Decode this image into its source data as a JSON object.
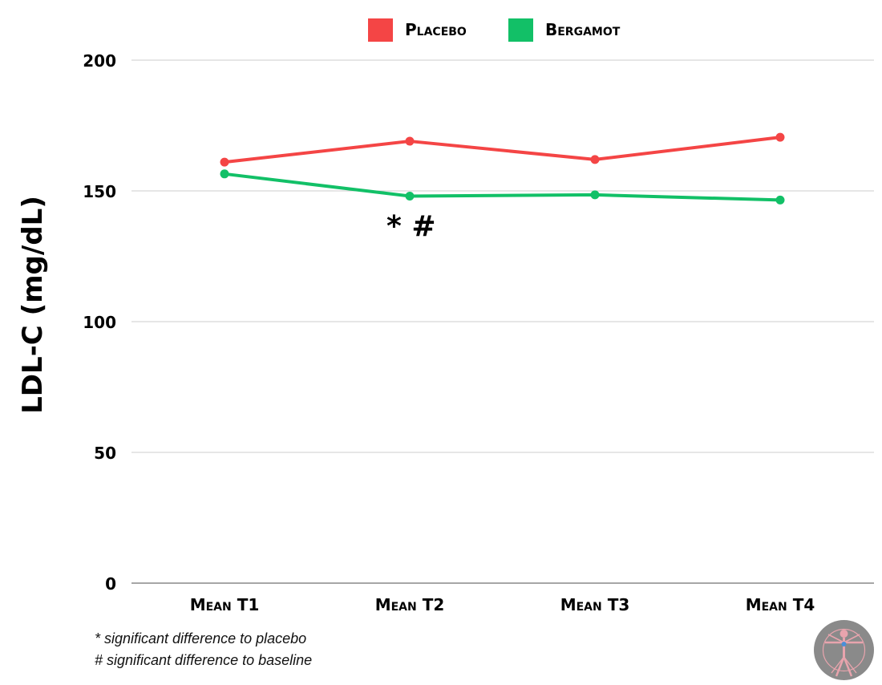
{
  "chart_data": {
    "type": "line",
    "categories": [
      "Mean T1",
      "Mean T2",
      "Mean T3",
      "Mean T4"
    ],
    "series": [
      {
        "name": "Placebo",
        "color": "#f44545",
        "values": [
          161,
          169,
          162,
          170.5
        ]
      },
      {
        "name": "Bergamot",
        "color": "#12c067",
        "values": [
          156.5,
          148,
          148.5,
          146.5
        ]
      }
    ],
    "ylabel": "LDL-C (mg/dL)",
    "xlabel": "",
    "ylim": [
      0,
      200
    ],
    "yticks": [
      "0",
      "50",
      "100",
      "150",
      "200"
    ],
    "grid": true,
    "legend_position": "top-center",
    "annotation": "* #",
    "footnotes": [
      "* significant difference to placebo",
      "# significant difference to baseline"
    ]
  },
  "logo": {
    "icon": "vitruvian-man-icon"
  }
}
